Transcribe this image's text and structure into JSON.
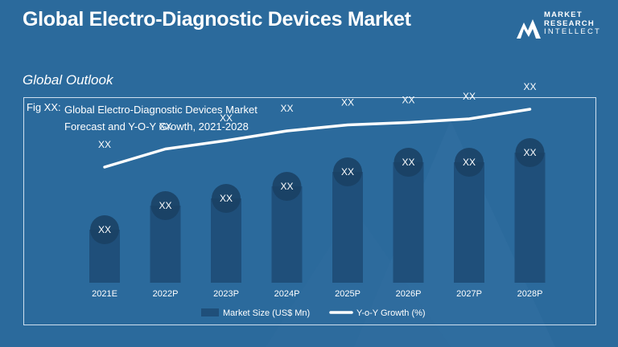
{
  "header": {
    "title": "Global Electro-Diagnostic Devices Market",
    "logo_lines": [
      "MARKET",
      "RESEARCH",
      "INTELLECT"
    ]
  },
  "subtitle": "Global Outlook",
  "figure": {
    "label": "Fig XX:",
    "title_line1": "Global Electro-Diagnostic Devices Market",
    "title_line2": "Forecast and Y-O-Y Growth, 2021-2028"
  },
  "colors": {
    "background": "#2b6a9c",
    "bar": "#1f4f7a",
    "bubble": "#1a3f63",
    "line": "#ffffff"
  },
  "chart_data": {
    "type": "bar",
    "categories": [
      "2021E",
      "2022P",
      "2023P",
      "2024P",
      "2025P",
      "2026P",
      "2027P",
      "2028P"
    ],
    "series": [
      {
        "name": "Market Size (US$ Mn)",
        "type": "bar",
        "values": [
          2.2,
          3.2,
          3.5,
          4.0,
          4.6,
          5.0,
          5.0,
          5.4
        ],
        "labels": [
          "XX",
          "XX",
          "XX",
          "XX",
          "XX",
          "XX",
          "XX",
          "XX"
        ]
      },
      {
        "name": "Y-o-Y Growth (%)",
        "type": "line",
        "values": [
          4.8,
          5.55,
          5.9,
          6.3,
          6.55,
          6.65,
          6.8,
          7.2
        ],
        "labels": [
          "XX",
          "XX",
          "XX",
          "XX",
          "XX",
          "XX",
          "XX",
          "XX"
        ]
      }
    ],
    "ylim": [
      0,
      8
    ],
    "legend_position": "bottom",
    "grid": false
  }
}
